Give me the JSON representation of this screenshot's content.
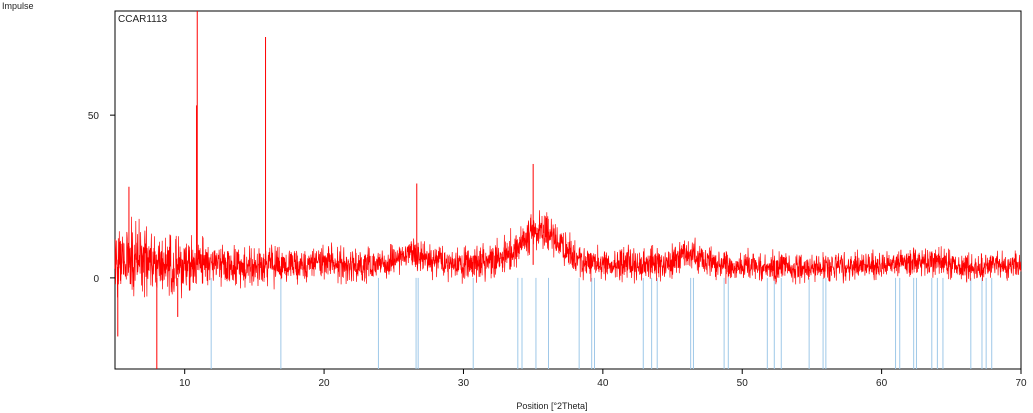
{
  "chart_data": {
    "type": "line",
    "sample_label": "CCAR1113",
    "xlabel": "Position [°2Theta]",
    "ylabel": "Impulse",
    "xlim": [
      5,
      70
    ],
    "ylim": [
      -28,
      82
    ],
    "x_ticks": [
      10,
      20,
      30,
      40,
      50,
      60,
      70
    ],
    "y_ticks": [
      0,
      50
    ],
    "grid": false,
    "series": [
      {
        "color": "#ff0000",
        "style": "noisy-pattern",
        "baseline_profile": [
          [
            5.0,
            4
          ],
          [
            6.0,
            6
          ],
          [
            7.0,
            5
          ],
          [
            8.0,
            4
          ],
          [
            10.0,
            4
          ],
          [
            12.0,
            5
          ],
          [
            14.0,
            3
          ],
          [
            16.0,
            4
          ],
          [
            18.0,
            4
          ],
          [
            20.0,
            5
          ],
          [
            22.0,
            4
          ],
          [
            24.0,
            4
          ],
          [
            25.5,
            6
          ],
          [
            26.5,
            8
          ],
          [
            27.5,
            6
          ],
          [
            30.0,
            4
          ],
          [
            32.0,
            5
          ],
          [
            33.5,
            8
          ],
          [
            34.5,
            12
          ],
          [
            35.0,
            15
          ],
          [
            36.0,
            14
          ],
          [
            37.0,
            10
          ],
          [
            38.5,
            5
          ],
          [
            40.0,
            4
          ],
          [
            43.0,
            4
          ],
          [
            45.0,
            5
          ],
          [
            46.0,
            8
          ],
          [
            47.0,
            6
          ],
          [
            48.0,
            4
          ],
          [
            55.0,
            3
          ],
          [
            60.0,
            4
          ],
          [
            61.0,
            5
          ],
          [
            64.0,
            5
          ],
          [
            66.0,
            3
          ],
          [
            70.0,
            4
          ]
        ],
        "noise_amplitude": [
          [
            5.0,
            18
          ],
          [
            7.0,
            15
          ],
          [
            9.0,
            13
          ],
          [
            12.0,
            9
          ],
          [
            18.0,
            8
          ],
          [
            25.0,
            7
          ],
          [
            35.0,
            8
          ],
          [
            45.0,
            7
          ],
          [
            55.0,
            6
          ],
          [
            65.0,
            6
          ],
          [
            70.0,
            6
          ]
        ],
        "peaks": [
          [
            10.9,
            82
          ],
          [
            10.85,
            53
          ],
          [
            15.8,
            74
          ],
          [
            26.65,
            29
          ],
          [
            35.0,
            35
          ],
          [
            6.0,
            28
          ]
        ],
        "dips": [
          [
            5.2,
            -18
          ],
          [
            8.0,
            -28
          ],
          [
            9.5,
            -12
          ]
        ]
      }
    ],
    "reference_pattern": {
      "color": "#9ec8e8",
      "positions": [
        11.9,
        16.9,
        23.9,
        26.6,
        26.75,
        30.7,
        33.9,
        34.2,
        35.2,
        36.1,
        38.3,
        39.2,
        39.4,
        42.9,
        43.5,
        43.9,
        46.3,
        46.5,
        48.7,
        49.0,
        51.8,
        52.3,
        52.8,
        54.8,
        55.8,
        56.0,
        61.0,
        61.3,
        62.3,
        62.5,
        63.6,
        64.0,
        64.4,
        66.4,
        67.2,
        67.5,
        67.9
      ]
    }
  }
}
